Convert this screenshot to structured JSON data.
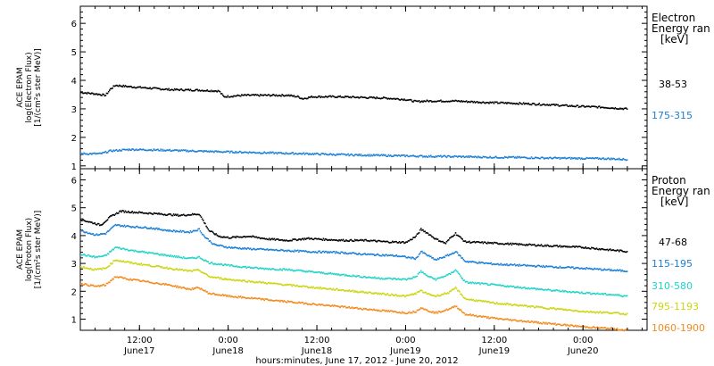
{
  "chart_data": [
    {
      "type": "scatter",
      "panel": "electron",
      "ylabel": [
        "ACE EPAM",
        "log(Electron Flux)",
        "[1/(cm²s ster MeV)]"
      ],
      "ylim": [
        0.9,
        6.6
      ],
      "yticks": [
        1,
        2,
        3,
        4,
        5,
        6
      ],
      "legend_title": [
        "Electron",
        "Energy ran",
        "[keV]"
      ],
      "series": [
        {
          "name": "38-53",
          "color": "#000000",
          "points": [
            [
              0,
              3.6
            ],
            [
              3,
              3.55
            ],
            [
              5,
              3.5
            ],
            [
              6,
              3.72
            ],
            [
              7,
              3.85
            ],
            [
              10,
              3.8
            ],
            [
              14,
              3.75
            ],
            [
              18,
              3.7
            ],
            [
              24,
              3.68
            ],
            [
              28,
              3.65
            ],
            [
              29,
              3.45
            ],
            [
              33,
              3.5
            ],
            [
              38,
              3.5
            ],
            [
              42,
              3.5
            ],
            [
              44,
              3.45
            ],
            [
              45,
              3.38
            ],
            [
              47,
              3.45
            ],
            [
              52,
              3.45
            ],
            [
              58,
              3.42
            ],
            [
              62,
              3.4
            ],
            [
              66,
              3.35
            ],
            [
              68,
              3.28
            ],
            [
              70,
              3.3
            ],
            [
              76,
              3.3
            ],
            [
              82,
              3.25
            ],
            [
              88,
              3.22
            ],
            [
              94,
              3.18
            ],
            [
              100,
              3.12
            ],
            [
              106,
              3.08
            ],
            [
              111,
              3.02
            ]
          ]
        },
        {
          "name": "175-315",
          "color": "#1a7fd6",
          "points": [
            [
              0,
              1.45
            ],
            [
              4,
              1.45
            ],
            [
              6,
              1.55
            ],
            [
              10,
              1.6
            ],
            [
              16,
              1.58
            ],
            [
              22,
              1.55
            ],
            [
              28,
              1.52
            ],
            [
              34,
              1.5
            ],
            [
              40,
              1.47
            ],
            [
              46,
              1.45
            ],
            [
              52,
              1.42
            ],
            [
              58,
              1.4
            ],
            [
              64,
              1.38
            ],
            [
              70,
              1.36
            ],
            [
              76,
              1.35
            ],
            [
              82,
              1.33
            ],
            [
              88,
              1.32
            ],
            [
              94,
              1.3
            ],
            [
              100,
              1.29
            ],
            [
              106,
              1.28
            ],
            [
              111,
              1.25
            ]
          ]
        }
      ]
    },
    {
      "type": "scatter",
      "panel": "proton",
      "ylabel": [
        "ACE EPAM",
        "log(Proton Flux)",
        "[1/(cm²s ster MeV)]"
      ],
      "ylim": [
        0.6,
        6.4
      ],
      "yticks": [
        1,
        2,
        3,
        4,
        5,
        6
      ],
      "legend_title": [
        "Proton",
        "Energy ran",
        "[keV]"
      ],
      "xticks": [
        {
          "top": "12:00",
          "bottom": "June17"
        },
        {
          "top": "0:00",
          "bottom": "June18"
        },
        {
          "top": "12:00",
          "bottom": "June18"
        },
        {
          "top": "0:00",
          "bottom": "June19"
        },
        {
          "top": "12:00",
          "bottom": "June19"
        },
        {
          "top": "0:00",
          "bottom": "June20"
        }
      ],
      "xlabel": "hours:minutes, June 17, 2012 - June 20, 2012",
      "series": [
        {
          "name": "47-68",
          "color": "#000000",
          "points": [
            [
              0,
              4.6
            ],
            [
              4,
              4.4
            ],
            [
              6,
              4.7
            ],
            [
              8,
              4.9
            ],
            [
              12,
              4.85
            ],
            [
              16,
              4.8
            ],
            [
              20,
              4.75
            ],
            [
              24,
              4.8
            ],
            [
              25,
              4.5
            ],
            [
              26,
              4.2
            ],
            [
              28,
              4.0
            ],
            [
              30,
              3.95
            ],
            [
              34,
              4.0
            ],
            [
              38,
              3.9
            ],
            [
              42,
              3.85
            ],
            [
              46,
              3.92
            ],
            [
              50,
              3.88
            ],
            [
              54,
              3.85
            ],
            [
              58,
              3.85
            ],
            [
              62,
              3.8
            ],
            [
              66,
              3.78
            ],
            [
              68,
              4.0
            ],
            [
              69,
              4.25
            ],
            [
              70,
              4.15
            ],
            [
              72,
              3.9
            ],
            [
              74,
              3.75
            ],
            [
              75,
              3.95
            ],
            [
              76,
              4.1
            ],
            [
              78,
              3.8
            ],
            [
              84,
              3.75
            ],
            [
              90,
              3.7
            ],
            [
              96,
              3.65
            ],
            [
              102,
              3.6
            ],
            [
              108,
              3.5
            ],
            [
              111,
              3.45
            ]
          ]
        },
        {
          "name": "115-195",
          "color": "#1a7fd6",
          "points": [
            [
              0,
              4.2
            ],
            [
              3,
              4.05
            ],
            [
              5,
              4.1
            ],
            [
              7,
              4.4
            ],
            [
              10,
              4.35
            ],
            [
              14,
              4.3
            ],
            [
              18,
              4.2
            ],
            [
              22,
              4.15
            ],
            [
              24,
              4.25
            ],
            [
              25,
              4.0
            ],
            [
              27,
              3.7
            ],
            [
              30,
              3.6
            ],
            [
              34,
              3.55
            ],
            [
              40,
              3.5
            ],
            [
              46,
              3.45
            ],
            [
              52,
              3.42
            ],
            [
              58,
              3.35
            ],
            [
              64,
              3.3
            ],
            [
              68,
              3.2
            ],
            [
              69,
              3.45
            ],
            [
              70,
              3.35
            ],
            [
              72,
              3.15
            ],
            [
              75,
              3.35
            ],
            [
              76,
              3.45
            ],
            [
              78,
              3.1
            ],
            [
              84,
              3.0
            ],
            [
              90,
              2.95
            ],
            [
              96,
              2.9
            ],
            [
              102,
              2.85
            ],
            [
              108,
              2.78
            ],
            [
              111,
              2.75
            ]
          ]
        },
        {
          "name": "310-580",
          "color": "#22d3c8",
          "points": [
            [
              0,
              3.35
            ],
            [
              3,
              3.25
            ],
            [
              5,
              3.3
            ],
            [
              7,
              3.6
            ],
            [
              10,
              3.5
            ],
            [
              14,
              3.4
            ],
            [
              18,
              3.3
            ],
            [
              22,
              3.2
            ],
            [
              24,
              3.25
            ],
            [
              26,
              3.05
            ],
            [
              30,
              2.95
            ],
            [
              36,
              2.85
            ],
            [
              42,
              2.8
            ],
            [
              48,
              2.7
            ],
            [
              54,
              2.6
            ],
            [
              60,
              2.5
            ],
            [
              66,
              2.45
            ],
            [
              68,
              2.55
            ],
            [
              69,
              2.75
            ],
            [
              70,
              2.6
            ],
            [
              72,
              2.45
            ],
            [
              75,
              2.65
            ],
            [
              76,
              2.8
            ],
            [
              78,
              2.35
            ],
            [
              84,
              2.25
            ],
            [
              90,
              2.15
            ],
            [
              96,
              2.05
            ],
            [
              102,
              1.97
            ],
            [
              108,
              1.9
            ],
            [
              111,
              1.85
            ]
          ]
        },
        {
          "name": "795-1193",
          "color": "#cbd60f",
          "points": [
            [
              0,
              2.9
            ],
            [
              3,
              2.8
            ],
            [
              5,
              2.85
            ],
            [
              7,
              3.15
            ],
            [
              10,
              3.05
            ],
            [
              14,
              2.95
            ],
            [
              18,
              2.85
            ],
            [
              22,
              2.75
            ],
            [
              24,
              2.78
            ],
            [
              26,
              2.55
            ],
            [
              30,
              2.45
            ],
            [
              36,
              2.35
            ],
            [
              42,
              2.25
            ],
            [
              48,
              2.15
            ],
            [
              54,
              2.05
            ],
            [
              60,
              1.95
            ],
            [
              66,
              1.85
            ],
            [
              68,
              1.95
            ],
            [
              69,
              2.05
            ],
            [
              70,
              1.95
            ],
            [
              72,
              1.85
            ],
            [
              75,
              2.0
            ],
            [
              76,
              2.15
            ],
            [
              78,
              1.75
            ],
            [
              84,
              1.6
            ],
            [
              90,
              1.5
            ],
            [
              96,
              1.4
            ],
            [
              102,
              1.3
            ],
            [
              108,
              1.25
            ],
            [
              111,
              1.2
            ]
          ]
        },
        {
          "name": "1060-1900",
          "color": "#f28a1e",
          "points": [
            [
              0,
              2.3
            ],
            [
              3,
              2.2
            ],
            [
              5,
              2.25
            ],
            [
              7,
              2.55
            ],
            [
              10,
              2.45
            ],
            [
              14,
              2.35
            ],
            [
              18,
              2.25
            ],
            [
              22,
              2.1
            ],
            [
              24,
              2.15
            ],
            [
              26,
              1.95
            ],
            [
              30,
              1.85
            ],
            [
              36,
              1.75
            ],
            [
              42,
              1.65
            ],
            [
              48,
              1.55
            ],
            [
              54,
              1.45
            ],
            [
              60,
              1.35
            ],
            [
              66,
              1.25
            ],
            [
              68,
              1.3
            ],
            [
              69,
              1.45
            ],
            [
              70,
              1.35
            ],
            [
              72,
              1.25
            ],
            [
              75,
              1.4
            ],
            [
              76,
              1.5
            ],
            [
              78,
              1.2
            ],
            [
              84,
              1.05
            ],
            [
              90,
              0.95
            ],
            [
              96,
              0.85
            ],
            [
              102,
              0.75
            ],
            [
              108,
              0.68
            ],
            [
              111,
              0.62
            ]
          ]
        }
      ]
    }
  ]
}
